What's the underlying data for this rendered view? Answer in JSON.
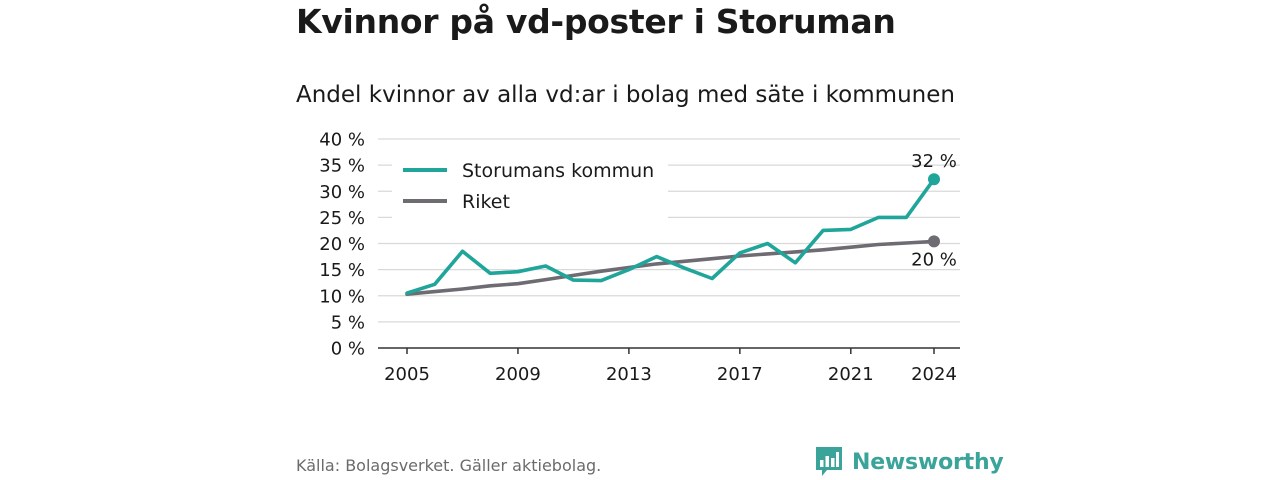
{
  "title": "Kvinnor på vd-poster i Storuman",
  "subtitle": "Andel kvinnor av alla vd:ar i bolag med säte i kommunen",
  "source": "Källa: Bolagsverket. Gäller aktiebolag.",
  "brand": {
    "name": "Newsworthy",
    "color": "#3aa39a",
    "icon": "bar-chart-speech-bubble-icon"
  },
  "chart_data": {
    "type": "line",
    "x": [
      2005,
      2006,
      2007,
      2008,
      2009,
      2010,
      2011,
      2012,
      2013,
      2014,
      2015,
      2016,
      2017,
      2018,
      2019,
      2020,
      2021,
      2022,
      2023,
      2024
    ],
    "x_ticks": [
      2005,
      2009,
      2013,
      2017,
      2021,
      2024
    ],
    "y_ticks": [
      0,
      5,
      10,
      15,
      20,
      25,
      30,
      35,
      40
    ],
    "y_tick_labels": [
      "0 %",
      "5 %",
      "10 %",
      "15 %",
      "20 %",
      "25 %",
      "30 %",
      "35 %",
      "40 %"
    ],
    "ylim": [
      0,
      40
    ],
    "grid": true,
    "legend_position": "top-left",
    "series": [
      {
        "name": "Storumans kommun",
        "color": "#1fa59a",
        "values": [
          10.5,
          12.2,
          18.5,
          14.3,
          14.6,
          15.7,
          13.0,
          12.9,
          15.0,
          17.5,
          15.3,
          13.3,
          18.2,
          20.0,
          16.3,
          22.5,
          22.7,
          25.0,
          25.0,
          32.3
        ],
        "end_label": "32 %"
      },
      {
        "name": "Riket",
        "color": "#6e6b73",
        "values": [
          10.3,
          10.8,
          11.3,
          11.9,
          12.3,
          13.1,
          13.9,
          14.7,
          15.4,
          16.1,
          16.6,
          17.1,
          17.6,
          18.0,
          18.4,
          18.8,
          19.3,
          19.8,
          20.1,
          20.4
        ],
        "end_label": "20 %"
      }
    ]
  }
}
